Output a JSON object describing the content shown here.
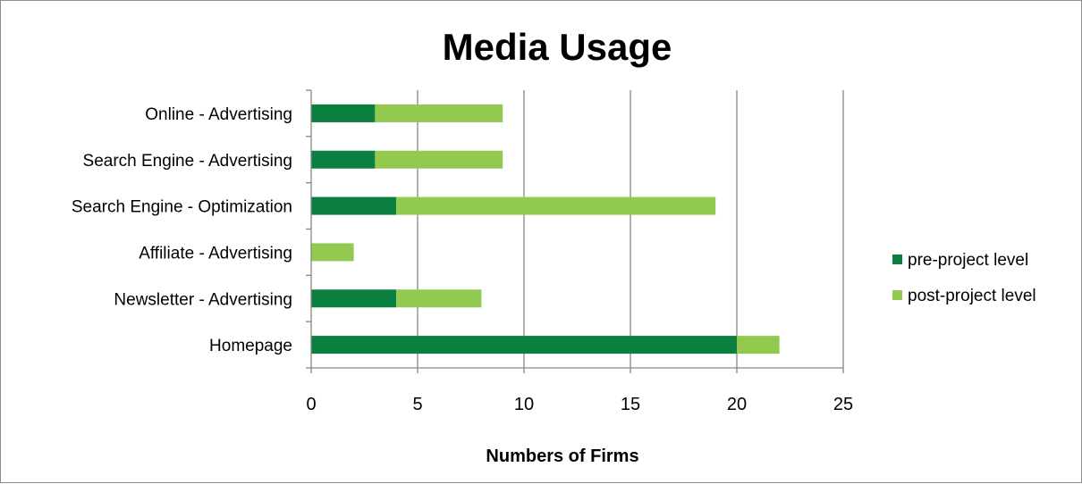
{
  "chart_data": {
    "type": "bar",
    "orientation": "horizontal",
    "stacked": true,
    "title": "Media Usage",
    "xlabel": "Numbers of Firms",
    "ylabel": "",
    "xlim": [
      0,
      25
    ],
    "xticks": [
      0,
      5,
      10,
      15,
      20,
      25
    ],
    "grid": true,
    "legend_position": "right",
    "categories": [
      "Online - Advertising",
      "Search Engine - Advertising",
      "Search Engine - Optimization",
      "Affiliate - Advertising",
      "Newsletter - Advertising",
      "Homepage"
    ],
    "series": [
      {
        "name": "pre-project level",
        "color": "#0b7f3f",
        "values": [
          3,
          3,
          4,
          0,
          4,
          20
        ]
      },
      {
        "name": "post-project level",
        "color": "#92c94f",
        "values": [
          6,
          6,
          15,
          2,
          4,
          2
        ]
      }
    ]
  }
}
